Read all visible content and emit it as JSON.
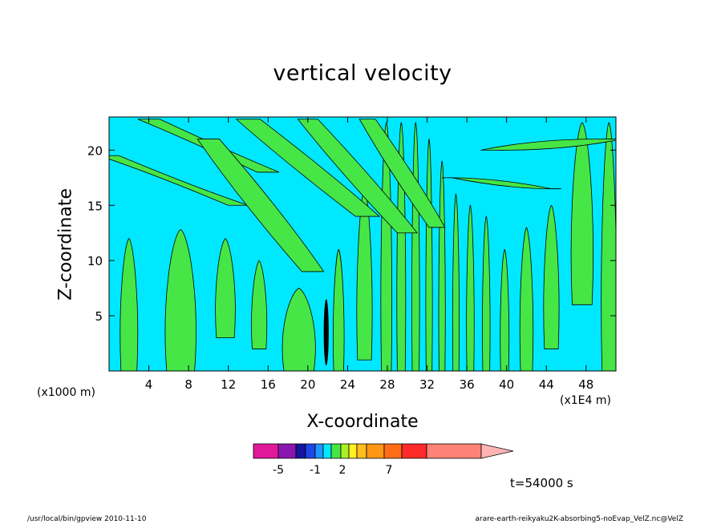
{
  "chart_data": {
    "type": "heatmap",
    "title": "vertical velocity",
    "xlabel": "X-coordinate",
    "ylabel": "Z-coordinate",
    "x_unit": "(x1000 m)",
    "x_unit_secondary": "(x1E4 m)",
    "xlim": [
      0,
      51
    ],
    "ylim": [
      0,
      23
    ],
    "x_ticks": [
      4,
      8,
      12,
      16,
      20,
      24,
      28,
      32,
      36,
      40,
      44,
      48
    ],
    "y_ticks": [
      5,
      10,
      15,
      20
    ],
    "timestamp": "t=54000 s",
    "colorbar": {
      "colors": [
        "#e0189a",
        "#8a16b0",
        "#1414a0",
        "#1e46e6",
        "#1e96ff",
        "#00e8ff",
        "#46e646",
        "#aaf028",
        "#fff01e",
        "#ffbe1e",
        "#ff9614",
        "#ff6e14",
        "#ff2a2a",
        "#ff8278",
        "#ffb4b4"
      ],
      "labels": [
        "-5",
        "-1",
        "2",
        "7"
      ]
    },
    "field_colors": {
      "negative": "#00e8ff",
      "positive": "#46e646",
      "strong_negative": "#000000"
    },
    "bands": [
      {
        "x": 1.2,
        "w": 1.6,
        "y0": 0.0,
        "y1": 12.0
      },
      {
        "x": 5.8,
        "w": 2.8,
        "y0": 0.0,
        "y1": 12.8
      },
      {
        "x": 10.8,
        "w": 1.8,
        "y0": 3.0,
        "y1": 12.0
      },
      {
        "x": 14.4,
        "w": 1.4,
        "y0": 2.0,
        "y1": 10.0
      },
      {
        "x": 17.6,
        "w": 3.0,
        "y0": 0.0,
        "y1": 7.5
      },
      {
        "x": 22.6,
        "w": 1.0,
        "y0": 0.0,
        "y1": 11.0
      },
      {
        "x": 25.0,
        "w": 1.4,
        "y0": 1.0,
        "y1": 16.5
      },
      {
        "x": 27.4,
        "w": 1.0,
        "y0": 0.0,
        "y1": 22.5
      },
      {
        "x": 29.0,
        "w": 0.8,
        "y0": 0.0,
        "y1": 22.5
      },
      {
        "x": 30.5,
        "w": 0.7,
        "y0": 0.0,
        "y1": 22.5
      },
      {
        "x": 31.9,
        "w": 0.6,
        "y0": 0.0,
        "y1": 21.0
      },
      {
        "x": 33.2,
        "w": 0.6,
        "y0": 0.0,
        "y1": 19.0
      },
      {
        "x": 34.6,
        "w": 0.6,
        "y0": 0.0,
        "y1": 16.0
      },
      {
        "x": 36.0,
        "w": 0.7,
        "y0": 0.0,
        "y1": 15.0
      },
      {
        "x": 37.6,
        "w": 0.7,
        "y0": 0.0,
        "y1": 14.0
      },
      {
        "x": 39.4,
        "w": 0.8,
        "y0": 0.0,
        "y1": 11.0
      },
      {
        "x": 41.4,
        "w": 1.2,
        "y0": 0.0,
        "y1": 13.0
      },
      {
        "x": 43.8,
        "w": 1.4,
        "y0": 2.0,
        "y1": 15.0
      },
      {
        "x": 46.6,
        "w": 2.0,
        "y0": 6.0,
        "y1": 22.5
      },
      {
        "x": 49.6,
        "w": 1.4,
        "y0": 0.0,
        "y1": 22.5
      }
    ],
    "tilted_bands": [
      {
        "x0": 0.0,
        "z0": 19.5,
        "x1": 13.0,
        "z1": 15.0,
        "w": 2.0
      },
      {
        "x0": 4.0,
        "z0": 22.8,
        "x1": 16.0,
        "z1": 18.0,
        "w": 2.2
      },
      {
        "x0": 14.0,
        "z0": 22.8,
        "x1": 26.0,
        "z1": 14.0,
        "w": 2.4
      },
      {
        "x0": 10.0,
        "z0": 21.0,
        "x1": 20.5,
        "z1": 9.0,
        "w": 2.2
      },
      {
        "x0": 20.0,
        "z0": 22.8,
        "x1": 30.0,
        "z1": 12.5,
        "w": 2.0
      },
      {
        "x0": 26.0,
        "z0": 22.8,
        "x1": 33.0,
        "z1": 13.0,
        "w": 1.6
      },
      {
        "x0": 38.0,
        "z0": 20.0,
        "x1": 51.0,
        "z1": 21.0,
        "w": 1.2
      },
      {
        "x0": 34.0,
        "z0": 17.5,
        "x1": 45.0,
        "z1": 16.5,
        "w": 1.0
      }
    ],
    "dark_core": {
      "x": 21.6,
      "w": 0.5,
      "y0": 0.5,
      "y1": 6.5
    }
  },
  "footer": {
    "left": "/usr/local/bin/gpview  2010-11-10",
    "right": "arare-earth-reikyaku2K-absorbing5-noEvap_VelZ.nc@VelZ"
  }
}
